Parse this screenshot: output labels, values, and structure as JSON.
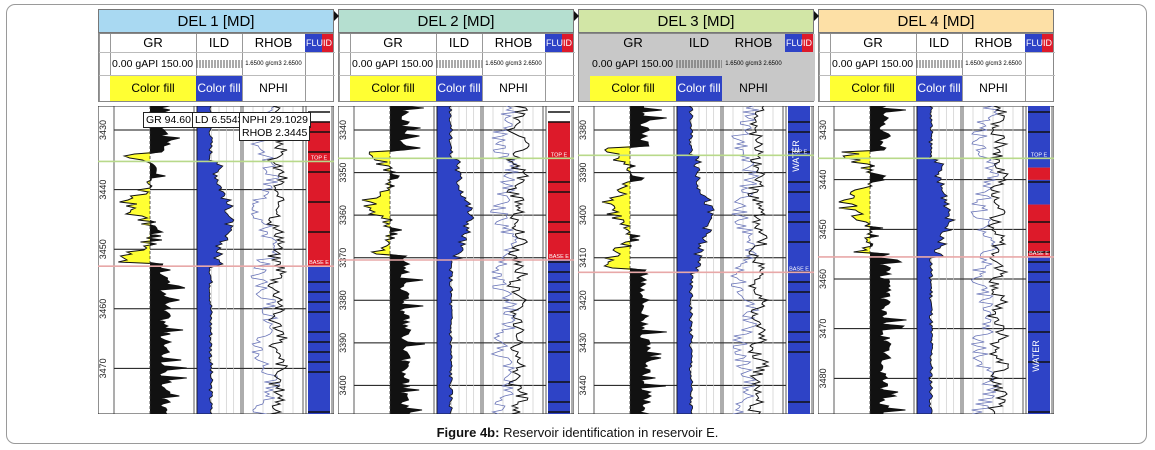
{
  "caption": {
    "label": "Figure 4b:",
    "text": " Reservoir identification in reservoir E."
  },
  "colors": {
    "gr_fill": "#ffff33",
    "ild_fill": "#2e43c6",
    "hydrocarbon": "#dd1a2a",
    "water": "#2e43c6",
    "top_marker": "#b8d98a",
    "base_marker": "#e8a8a8"
  },
  "header_labels": {
    "gr": "GR",
    "ild": "ILD",
    "rhob": "RHOB",
    "fluid": "FLUID",
    "gr_scale": "0.00 gAPI 150.00",
    "rhob_scale": "1.6500 g/cm3 2.6500",
    "gr_fill_label": "Color fill",
    "ild_fill_label": "Color fill",
    "nphi": "NPHI"
  },
  "readouts": {
    "gr": "GR 94.60",
    "ild": "LD 6.5543",
    "nphi": "NPHI 29.1029",
    "rhob": "RHOB 2.3445"
  },
  "chart_data": [
    {
      "type": "line",
      "well": "DEL 1 [MD]",
      "title_color": "#a9d9f2",
      "depth_ticks": [
        "3430",
        "3440",
        "3450",
        "3460",
        "3470"
      ],
      "fluid_label": "",
      "fluid_zones": [
        {
          "from": 0.05,
          "to": 0.52,
          "fluid": "hydrocarbon"
        },
        {
          "from": 0.52,
          "to": 1.0,
          "fluid": "water"
        }
      ],
      "top_marker_label": "TOP E",
      "base_marker_label": "BASE E",
      "top_marker": 0.18,
      "base_marker": 0.52
    },
    {
      "type": "line",
      "well": "DEL 2 [MD]",
      "title_color": "#b5dfd0",
      "depth_ticks": [
        "3340",
        "3350",
        "3360",
        "3370",
        "3380",
        "3390",
        "3400"
      ],
      "fluid_label": "",
      "fluid_zones": [
        {
          "from": 0.05,
          "to": 0.5,
          "fluid": "hydrocarbon"
        },
        {
          "from": 0.5,
          "to": 1.0,
          "fluid": "water"
        }
      ],
      "top_marker_label": "TOP E",
      "base_marker_label": "BASE E",
      "top_marker": 0.17,
      "base_marker": 0.5
    },
    {
      "type": "line",
      "well": "DEL 3 [MD]",
      "title_color": "#d2e6a6",
      "depth_ticks": [
        "3380",
        "3390",
        "3400",
        "3410",
        "3420",
        "3430",
        "3440"
      ],
      "fluid_label": "WATER",
      "fluid_zones": [
        {
          "from": 0.0,
          "to": 1.0,
          "fluid": "water"
        }
      ],
      "top_marker_label": "TOP E",
      "base_marker_label": "BASE E",
      "top_marker": 0.16,
      "base_marker": 0.54
    },
    {
      "type": "line",
      "well": "DEL 4 [MD]",
      "title_color": "#fde0a6",
      "depth_ticks": [
        "3430",
        "3440",
        "3450",
        "3460",
        "3470",
        "3480"
      ],
      "fluid_label": "WATER",
      "fluid_zones": [
        {
          "from": 0.0,
          "to": 0.2,
          "fluid": "water"
        },
        {
          "from": 0.2,
          "to": 0.24,
          "fluid": "hydrocarbon"
        },
        {
          "from": 0.24,
          "to": 0.32,
          "fluid": "water"
        },
        {
          "from": 0.32,
          "to": 0.49,
          "fluid": "hydrocarbon"
        },
        {
          "from": 0.49,
          "to": 1.0,
          "fluid": "water"
        }
      ],
      "top_marker_label": "TOP E",
      "base_marker_label": "BASE E",
      "top_marker": 0.17,
      "base_marker": 0.49
    }
  ]
}
